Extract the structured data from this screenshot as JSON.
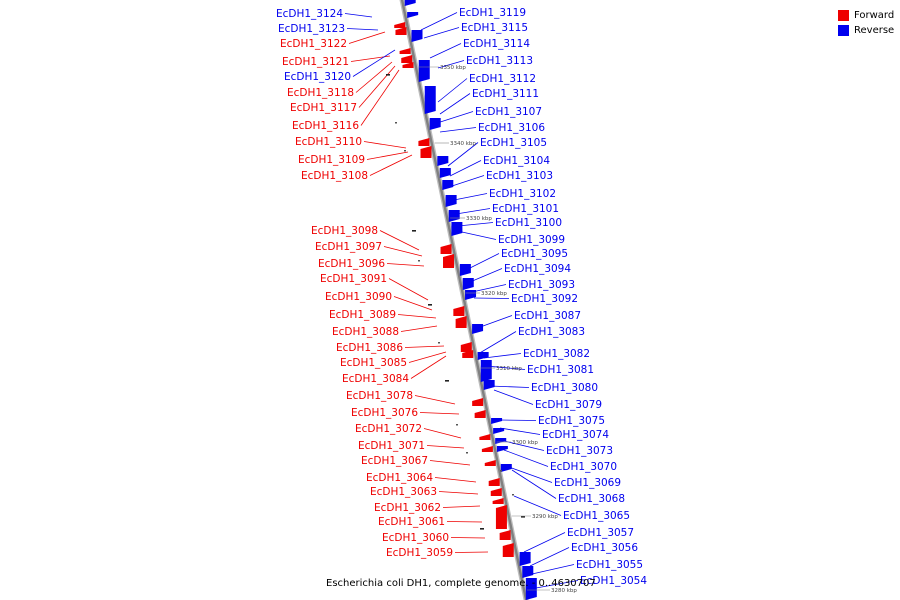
{
  "colors": {
    "forward": "#ee0000",
    "reverse": "#0000ee",
    "backbone": "#808080"
  },
  "legend": {
    "forward_label": "Forward",
    "reverse_label": "Reverse"
  },
  "caption": "Escherichia coli DH1, complete genome. - 0..4630707",
  "ticks": [
    "3350 kbp",
    "3340 kbp",
    "3330 kbp",
    "3320 kbp",
    "3310 kbp",
    "3300 kbp",
    "3290 kbp",
    "3280 kbp"
  ],
  "forward_labels": [
    "EcDH1_3124",
    "EcDH1_3123",
    "EcDH1_3122",
    "EcDH1_3121",
    "EcDH1_3120",
    "EcDH1_3118",
    "EcDH1_3117",
    "EcDH1_3116",
    "EcDH1_3110",
    "EcDH1_3109",
    "EcDH1_3108",
    "EcDH1_3098",
    "EcDH1_3097",
    "EcDH1_3096",
    "EcDH1_3091",
    "EcDH1_3090",
    "EcDH1_3089",
    "EcDH1_3088",
    "EcDH1_3086",
    "EcDH1_3085",
    "EcDH1_3084",
    "EcDH1_3078",
    "EcDH1_3076",
    "EcDH1_3072",
    "EcDH1_3071",
    "EcDH1_3067",
    "EcDH1_3064",
    "EcDH1_3063",
    "EcDH1_3062",
    "EcDH1_3061",
    "EcDH1_3060",
    "EcDH1_3059"
  ],
  "forward_strands": [
    "reverse",
    "reverse",
    "forward",
    "forward",
    "reverse",
    "forward",
    "forward",
    "forward",
    "forward",
    "forward",
    "forward",
    "forward",
    "forward",
    "forward",
    "forward",
    "forward",
    "forward",
    "forward",
    "forward",
    "forward",
    "forward",
    "forward",
    "forward",
    "forward",
    "forward",
    "forward",
    "forward",
    "forward",
    "forward",
    "forward",
    "forward",
    "forward"
  ],
  "reverse_labels": [
    "EcDH1_3119",
    "EcDH1_3115",
    "EcDH1_3114",
    "EcDH1_3113",
    "EcDH1_3112",
    "EcDH1_3111",
    "EcDH1_3107",
    "EcDH1_3106",
    "EcDH1_3105",
    "EcDH1_3104",
    "EcDH1_3103",
    "EcDH1_3102",
    "EcDH1_3101",
    "EcDH1_3100",
    "EcDH1_3099",
    "EcDH1_3095",
    "EcDH1_3094",
    "EcDH1_3093",
    "EcDH1_3092",
    "EcDH1_3087",
    "EcDH1_3083",
    "EcDH1_3082",
    "EcDH1_3081",
    "EcDH1_3080",
    "EcDH1_3079",
    "EcDH1_3075",
    "EcDH1_3074",
    "EcDH1_3073",
    "EcDH1_3070",
    "EcDH1_3069",
    "EcDH1_3068",
    "EcDH1_3065",
    "EcDH1_3057",
    "EcDH1_3056",
    "EcDH1_3055",
    "EcDH1_3054"
  ]
}
